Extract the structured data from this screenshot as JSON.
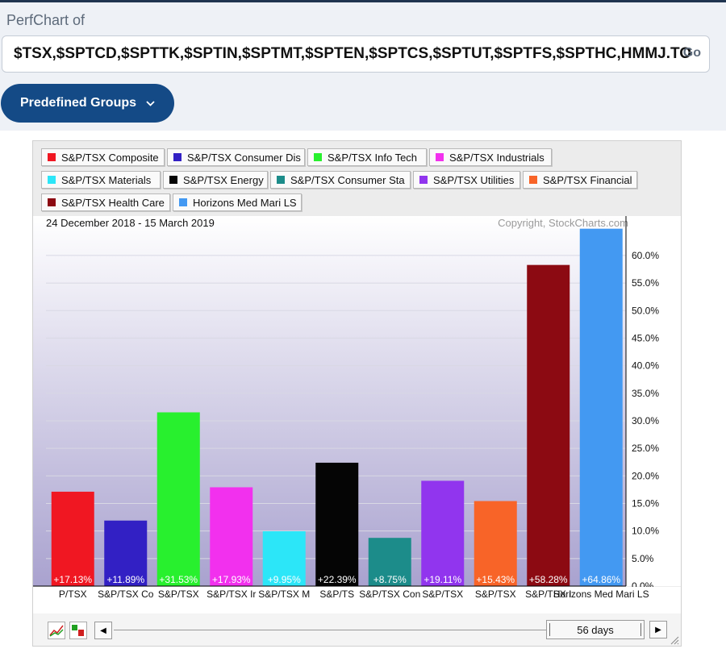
{
  "header": {
    "perfchart_label": "PerfChart of",
    "symbols_value": "$TSX,$SPTCD,$SPTTK,$SPTIN,$SPTMT,$SPTEN,$SPTCS,$SPTUT,$SPTFS,$SPTHC,HMMJ.TO",
    "go_label": "Go",
    "groups_label": "Predefined Groups"
  },
  "chart_data": {
    "type": "bar",
    "title": "24 December 2018 - 15 March 2019",
    "copyright": "Copyright, StockCharts.com",
    "ylim": [
      0,
      65
    ],
    "ytick_labels": [
      "0.0%",
      "5.0%",
      "10.0%",
      "15.0%",
      "20.0%",
      "25.0%",
      "30.0%",
      "35.0%",
      "40.0%",
      "45.0%",
      "50.0%",
      "55.0%",
      "60.0%"
    ],
    "categories": [
      "S&P/TSX Composite",
      "S&P/TSX Consumer Dis",
      "S&P/TSX Info Tech",
      "S&P/TSX Industrials",
      "S&P/TSX Materials",
      "S&P/TSX Energy",
      "S&P/TSX Consumer Sta",
      "S&P/TSX Utilities",
      "S&P/TSX Financial",
      "S&P/TSX Health Care",
      "Horizons Med Mari LS"
    ],
    "x_tick_labels": [
      "P/TSX",
      "S&P/TSX Co",
      "S&P/TSX",
      "S&P/TSX Ir",
      "S&P/TSX M",
      "S&P/TS",
      "S&P/TSX Con",
      "S&P/TSX",
      "S&P/TSX",
      "S&P/TSX I",
      "Horizons Med Mari LS"
    ],
    "values": [
      17.13,
      11.89,
      31.53,
      17.93,
      9.95,
      22.39,
      8.75,
      19.11,
      15.43,
      58.28,
      64.86
    ],
    "value_labels": [
      "+17.13%",
      "+11.89%",
      "+31.53%",
      "+17.93%",
      "+9.95%",
      "+22.39%",
      "+8.75%",
      "+19.11%",
      "+15.43%",
      "+58.28%",
      "+64.86%"
    ],
    "colors": [
      "#f01722",
      "#3220c4",
      "#28f02e",
      "#f230ee",
      "#2ce6f8",
      "#050505",
      "#1c8c8a",
      "#9135ee",
      "#f86428",
      "#8c0a12",
      "#4399f2"
    ],
    "grid": true,
    "legend_position": "top"
  },
  "footer": {
    "days_label": "56 days",
    "left_arrow": "◀",
    "right_arrow": "▶"
  }
}
